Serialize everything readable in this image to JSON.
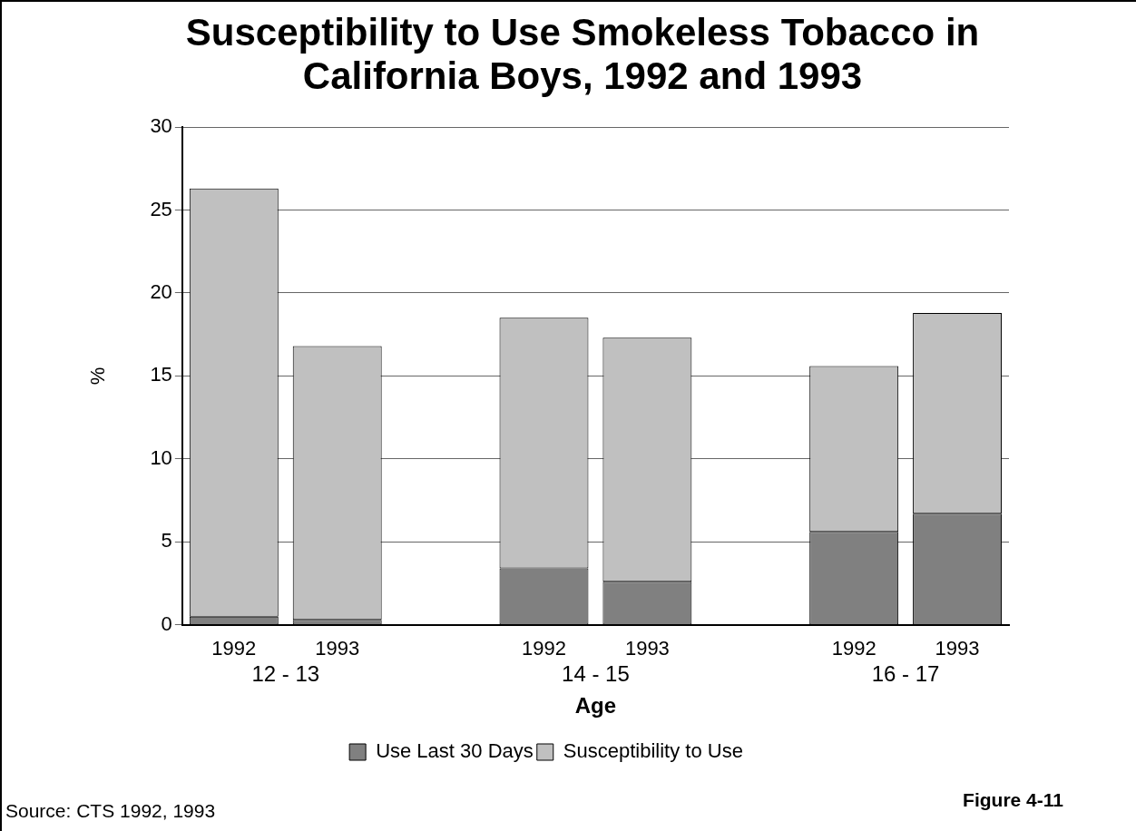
{
  "chart_data": {
    "type": "bar",
    "title": "Susceptibility to Use Smokeless Tobacco in California Boys, 1992 and 1993",
    "xlabel": "Age",
    "ylabel": "%",
    "categories": [
      "1992",
      "1993",
      null,
      "1992",
      "1993",
      null,
      "1992",
      "1993"
    ],
    "series": [
      {
        "name": "Use Last 30 Days",
        "color": "#808080",
        "values": [
          0.5,
          0.3,
          null,
          3.4,
          2.6,
          null,
          5.6,
          6.7
        ]
      },
      {
        "name": "Susceptibility to Use",
        "color": "#c0c0c0",
        "values": [
          25.8,
          16.5,
          null,
          15.1,
          14.7,
          null,
          10.0,
          12.1
        ]
      }
    ],
    "stacked": true,
    "ylim": [
      0,
      30
    ],
    "yticks": [
      0,
      5,
      10,
      15,
      20,
      25,
      30
    ],
    "grid": "y",
    "legend": "bottom",
    "annotations": [
      "12 - 13",
      "14 - 15",
      "16 - 17",
      "Source: CTS 1992, 1993",
      "Figure 4-11"
    ]
  }
}
